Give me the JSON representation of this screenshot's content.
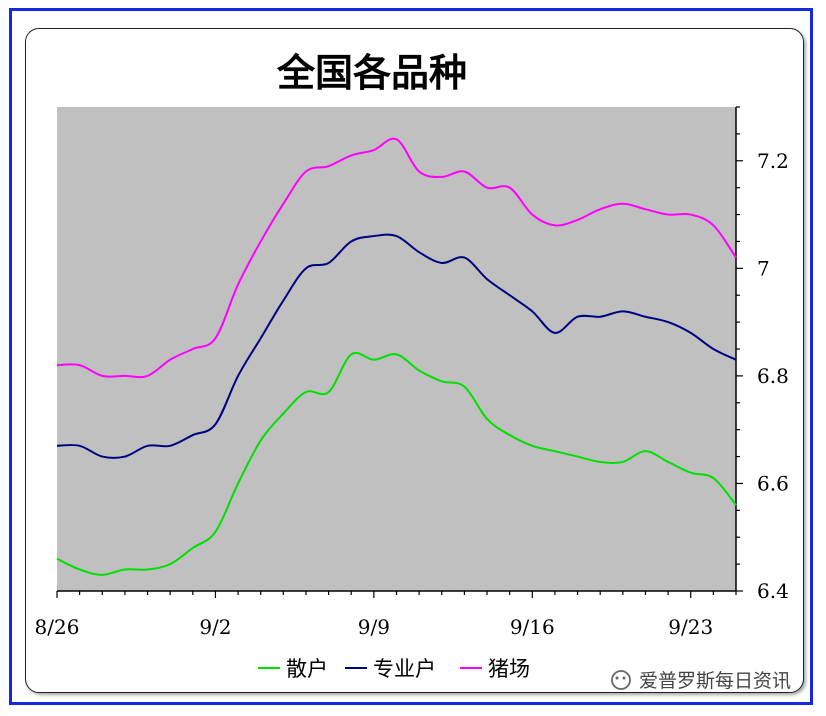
{
  "chart_data": {
    "type": "line",
    "title": "全国各品种",
    "xlabel": "",
    "ylabel": "",
    "x_ticks": [
      "8/26",
      "9/2",
      "9/9",
      "9/16",
      "9/23"
    ],
    "y_ticks": [
      "6.4",
      "6.6",
      "6.8",
      "7",
      "7.2"
    ],
    "ylim": [
      6.4,
      7.3
    ],
    "y_axis_side": "right",
    "grid": false,
    "plot_background": "#c0c0c0",
    "legend_position": "bottom",
    "x": [
      0,
      1,
      2,
      3,
      4,
      5,
      6,
      7,
      8,
      9,
      10,
      11,
      12,
      13,
      14,
      15,
      16,
      17,
      18,
      19,
      20,
      21,
      22,
      23,
      24,
      25,
      26,
      27,
      28,
      29,
      30
    ],
    "series": [
      {
        "name": "散户",
        "color": "#00e000",
        "values": [
          6.46,
          6.44,
          6.43,
          6.44,
          6.44,
          6.45,
          6.48,
          6.51,
          6.6,
          6.68,
          6.73,
          6.77,
          6.77,
          6.84,
          6.83,
          6.84,
          6.81,
          6.79,
          6.78,
          6.72,
          6.69,
          6.67,
          6.66,
          6.65,
          6.64,
          6.64,
          6.66,
          6.64,
          6.62,
          6.61,
          6.56
        ]
      },
      {
        "name": "专业户",
        "color": "#000080",
        "values": [
          6.67,
          6.67,
          6.65,
          6.65,
          6.67,
          6.67,
          6.69,
          6.71,
          6.8,
          6.87,
          6.94,
          7.0,
          7.01,
          7.05,
          7.06,
          7.06,
          7.03,
          7.01,
          7.02,
          6.98,
          6.95,
          6.92,
          6.88,
          6.91,
          6.91,
          6.92,
          6.91,
          6.9,
          6.88,
          6.85,
          6.83
        ]
      },
      {
        "name": "猪场",
        "color": "#ff00ff",
        "values": [
          6.82,
          6.82,
          6.8,
          6.8,
          6.8,
          6.83,
          6.85,
          6.87,
          6.97,
          7.05,
          7.12,
          7.18,
          7.19,
          7.21,
          7.22,
          7.24,
          7.18,
          7.17,
          7.18,
          7.15,
          7.15,
          7.1,
          7.08,
          7.09,
          7.11,
          7.12,
          7.11,
          7.1,
          7.1,
          7.08,
          7.02
        ]
      }
    ]
  },
  "watermark": "爱普罗斯每日资讯"
}
